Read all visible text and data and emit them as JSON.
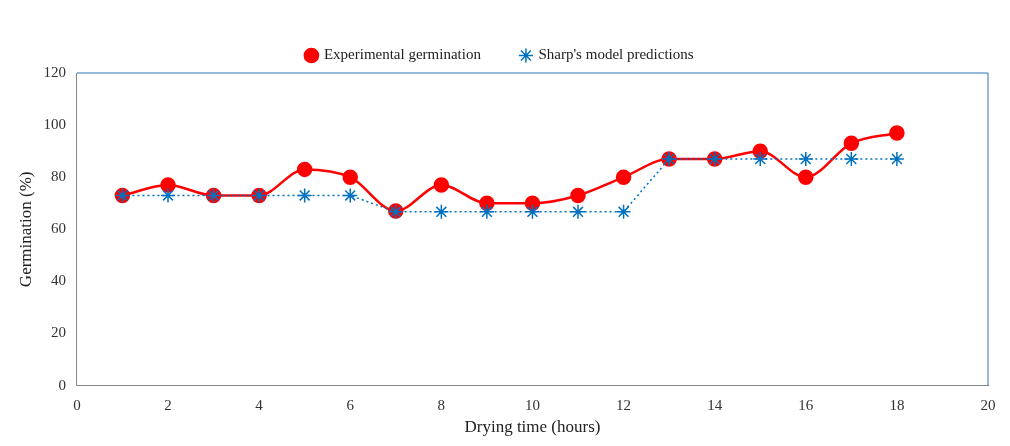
{
  "chart_data": {
    "type": "line",
    "xlabel": "Drying time (hours)",
    "ylabel": "Germination (%)",
    "x": [
      1,
      2,
      3,
      4,
      5,
      6,
      7,
      8,
      9,
      10,
      11,
      12,
      13,
      14,
      15,
      16,
      17,
      18
    ],
    "series": [
      {
        "name": "Experimental germination",
        "color": "#ff0000",
        "marker": "circle",
        "line_style": "solid",
        "values": [
          73,
          77,
          73,
          73,
          83,
          80,
          67,
          77,
          70,
          70,
          73,
          80,
          87,
          87,
          90,
          80,
          93,
          97
        ]
      },
      {
        "name": "Sharp's model predictions",
        "color": "#0070c0",
        "marker": "cross",
        "line_style": "dotted",
        "values": [
          73,
          73,
          73,
          73,
          73,
          73,
          66.7,
          66.7,
          66.7,
          66.7,
          66.7,
          66.7,
          87,
          87,
          87,
          87,
          87,
          87
        ]
      }
    ],
    "xlim": [
      0,
      20
    ],
    "xticks": [
      0,
      2,
      4,
      6,
      8,
      10,
      12,
      14,
      16,
      18,
      20
    ],
    "ylim": [
      0,
      120
    ],
    "yticks": [
      0,
      20,
      40,
      60,
      80,
      100,
      120
    ],
    "grid": false,
    "legend": "top"
  }
}
